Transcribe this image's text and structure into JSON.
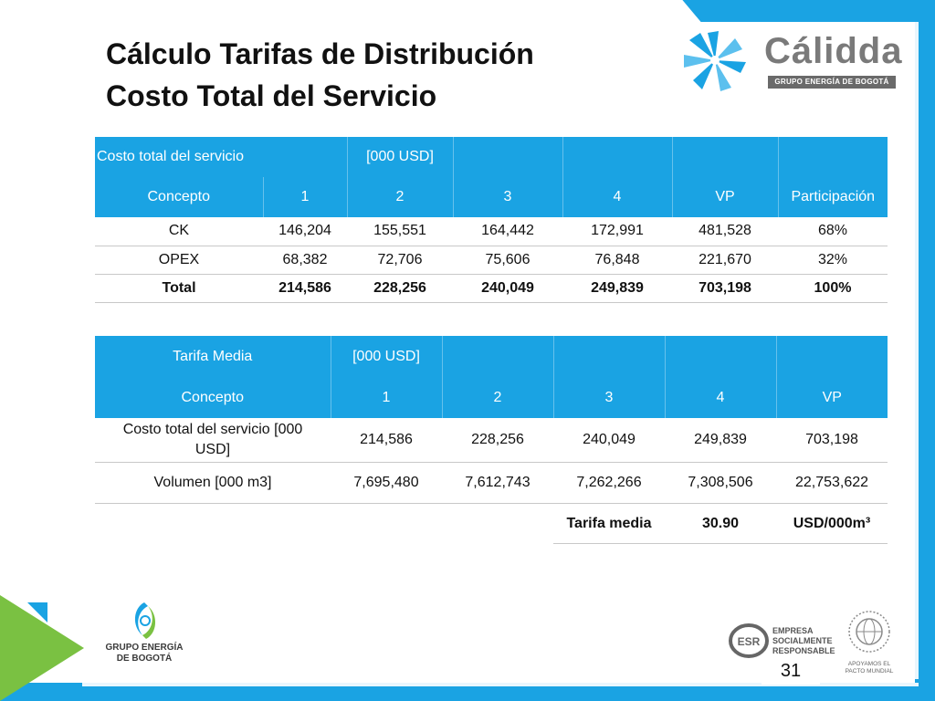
{
  "title": {
    "line1": "Cálculo Tarifas de Distribución",
    "line2": "Costo Total del Servicio"
  },
  "brand": {
    "name": "Cálidda",
    "subtitle": "GRUPO ENERGÍA DE BOGOTÁ",
    "icon": "calidda-flower-logo"
  },
  "table1": {
    "caption": "Costo total del servicio",
    "unit": "[000 USD]",
    "columns": [
      "Concepto",
      "1",
      "2",
      "3",
      "4",
      "VP",
      "Participación"
    ],
    "rows": [
      [
        "CK",
        "146,204",
        "155,551",
        "164,442",
        "172,991",
        "481,528",
        "68%"
      ],
      [
        "OPEX",
        "68,382",
        "72,706",
        "75,606",
        "76,848",
        "221,670",
        "32%"
      ],
      [
        "Total",
        "214,586",
        "228,256",
        "240,049",
        "249,839",
        "703,198",
        "100%"
      ]
    ]
  },
  "table2": {
    "caption": "Tarifa Media",
    "unit": "[000 USD]",
    "columns": [
      "Concepto",
      "1",
      "2",
      "3",
      "4",
      "VP"
    ],
    "rows": [
      [
        "Costo total del servicio [000 USD]",
        "214,586",
        "228,256",
        "240,049",
        "249,839",
        "703,198"
      ],
      [
        "Volumen [000 m3]",
        "7,695,480",
        "7,612,743",
        "7,262,266",
        "7,308,506",
        "22,753,622"
      ]
    ]
  },
  "tarifa": {
    "label": "Tarifa media",
    "value": "30.90",
    "unit": "USD/000m³"
  },
  "footer": {
    "geb_logo_text": "GRUPO ENERGÍA DE BOGOTÁ",
    "esr_text": "EMPRESA SOCIALMENTE RESPONSABLE",
    "pacto_text": "APOYAMOS EL PACTO MUNDIAL",
    "pacto_ring_text": "THE GLOBAL COMPACT",
    "page_number": "31"
  },
  "colors": {
    "accent_blue": "#1aa3e3",
    "accent_green": "#7ac142",
    "logo_gray": "#7a7a7a"
  }
}
